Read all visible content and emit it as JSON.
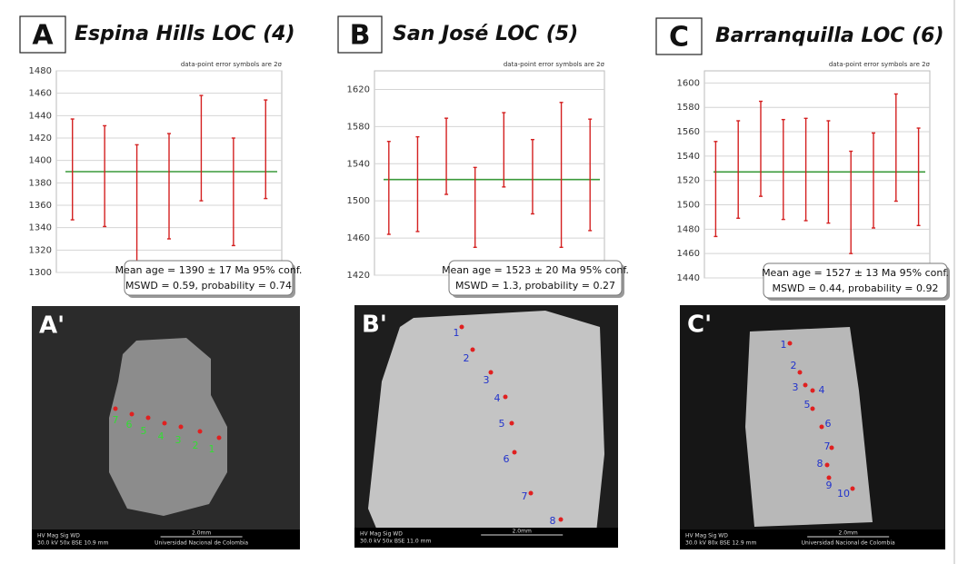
{
  "chart_data": [
    {
      "type": "errorbar",
      "panel": "A",
      "title": "Espina Hills LOC (4)",
      "subtitle": "data-point error symbols are 2σ",
      "values": [
        1392,
        1386,
        1356,
        1377,
        1411,
        1372,
        1410
      ],
      "errors": [
        45,
        45,
        58,
        47,
        47,
        48,
        44
      ],
      "mean": 1390,
      "color": "#d42020",
      "mean_color": "#3a9a3a",
      "grid": true,
      "ylim": [
        1300,
        1480
      ],
      "yticks": [
        1300,
        1320,
        1340,
        1360,
        1380,
        1400,
        1420,
        1440,
        1460,
        1480
      ],
      "annotations": [
        "Mean age = 1390 ± 17  Ma  95% conf.",
        "MSWD = 0.59, probability = 0.74"
      ]
    },
    {
      "type": "errorbar",
      "panel": "B",
      "title": "San José LOC (5)",
      "subtitle": "data-point error symbols are 2σ",
      "values": [
        1514,
        1518,
        1548,
        1493,
        1555,
        1526,
        1528,
        1528
      ],
      "errors": [
        50,
        51,
        41,
        43,
        40,
        40,
        78,
        60
      ],
      "mean": 1523,
      "color": "#d42020",
      "mean_color": "#3a9a3a",
      "grid": true,
      "ylim": [
        1420,
        1640
      ],
      "yticks": [
        1420,
        1460,
        1500,
        1540,
        1580,
        1620
      ],
      "annotations": [
        "Mean age = 1523 ± 20  Ma  95% conf.",
        "MSWD = 1.3, probability = 0.27"
      ]
    },
    {
      "type": "errorbar",
      "panel": "C",
      "title": "Barranquilla LOC (6)",
      "subtitle": "data-point error symbols are 2σ",
      "values": [
        1513,
        1529,
        1546,
        1529,
        1529,
        1527,
        1502,
        1520,
        1547,
        1523
      ],
      "errors": [
        39,
        40,
        39,
        41,
        42,
        42,
        42,
        39,
        44,
        40
      ],
      "mean": 1527,
      "color": "#d42020",
      "mean_color": "#3a9a3a",
      "grid": true,
      "ylim": [
        1440,
        1610
      ],
      "yticks": [
        1440,
        1460,
        1480,
        1500,
        1520,
        1540,
        1560,
        1580,
        1600
      ],
      "annotations": [
        "Mean age = 1527 ± 13  Ma  95% conf.",
        "MSWD = 0.44, probability = 0.92"
      ]
    }
  ],
  "images": [
    {
      "label": "A'",
      "spots": [
        "7",
        "6",
        "5",
        "4",
        "3",
        "2",
        "1"
      ],
      "info_header": "HV  Mag  Sig  WD",
      "info": "30.0 kV  50x  BSE  10.9 mm",
      "scale": "2.0mm",
      "institution": "Universidad Nacional de Colombia"
    },
    {
      "label": "B'",
      "spots": [
        "1",
        "2",
        "3",
        "4",
        "5",
        "6",
        "7",
        "8"
      ],
      "info_header": "HV  Mag  Sig  WD",
      "info": "30.0 kV  50x  BSE  11.0 mm",
      "scale": "2.0mm"
    },
    {
      "label": "C'",
      "spots": [
        "1",
        "2",
        "3",
        "4",
        "5",
        "6",
        "7",
        "8",
        "9",
        "10"
      ],
      "info_header": "HV  Mag  Sig  WD",
      "info": "30.0 kV  80x  BSE  12.9 mm",
      "scale": "2.0mm",
      "institution": "Universidad Nacional de Colombia"
    }
  ]
}
